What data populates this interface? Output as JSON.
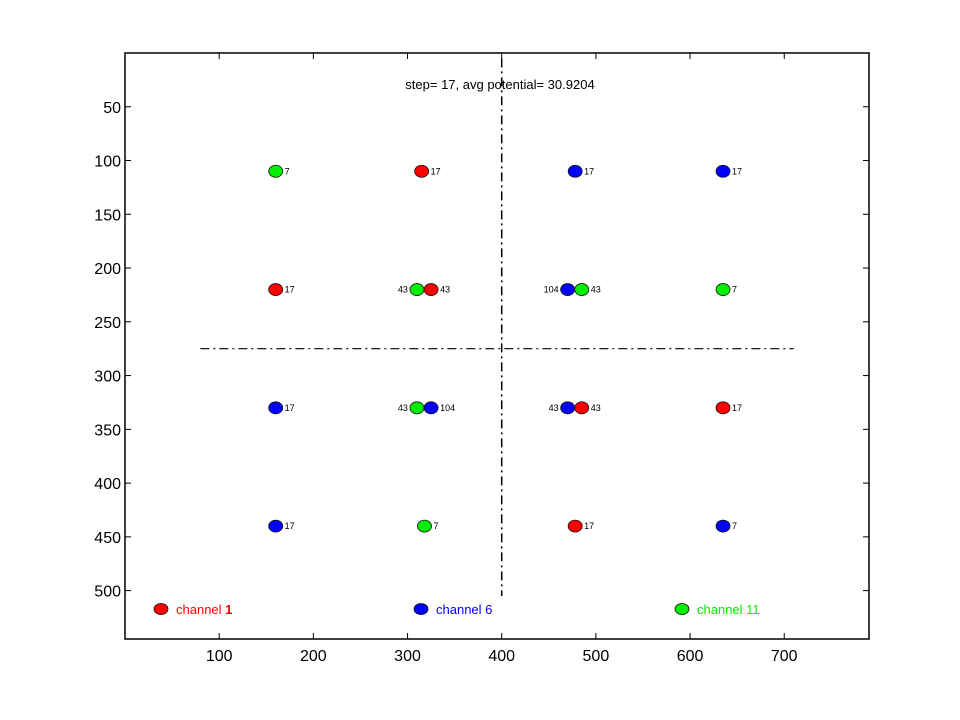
{
  "chart_data": {
    "type": "scatter",
    "title": "step= 17, avg potential= 30.9204",
    "xlabel": "",
    "ylabel": "",
    "xlim": [
      0,
      790
    ],
    "ylim": [
      545,
      0
    ],
    "y_reversed": true,
    "grid": false,
    "legend_placement": "bottom",
    "x_ticks": [
      100,
      200,
      300,
      400,
      500,
      600,
      700
    ],
    "y_ticks": [
      50,
      100,
      150,
      200,
      250,
      300,
      350,
      400,
      450,
      500
    ],
    "reference_lines": [
      {
        "orientation": "vertical",
        "x": 400,
        "y_range": [
          5,
          505
        ],
        "style": "dash-dot"
      },
      {
        "orientation": "horizontal",
        "y": 275,
        "x_range": [
          80,
          710
        ],
        "style": "dash-dot"
      }
    ],
    "series": [
      {
        "name": "channel 1",
        "color": "#ff0000",
        "points": [
          {
            "x": 315,
            "y": 110,
            "label": "17"
          },
          {
            "x": 160,
            "y": 220,
            "label": "17"
          },
          {
            "x": 325,
            "y": 220,
            "label": "43"
          },
          {
            "x": 485,
            "y": 330,
            "label": "43"
          },
          {
            "x": 635,
            "y": 330,
            "label": "17"
          },
          {
            "x": 478,
            "y": 440,
            "label": "17"
          }
        ]
      },
      {
        "name": "channel 6",
        "color": "#0000ff",
        "points": [
          {
            "x": 478,
            "y": 110,
            "label": "17"
          },
          {
            "x": 635,
            "y": 110,
            "label": "17"
          },
          {
            "x": 470,
            "y": 220,
            "label": "104"
          },
          {
            "x": 160,
            "y": 330,
            "label": "17"
          },
          {
            "x": 325,
            "y": 330,
            "label": "104"
          },
          {
            "x": 470,
            "y": 330,
            "label": "43"
          },
          {
            "x": 160,
            "y": 440,
            "label": "17"
          },
          {
            "x": 635,
            "y": 440,
            "label": "7"
          }
        ]
      },
      {
        "name": "channel 11",
        "color": "#00ee00",
        "points": [
          {
            "x": 160,
            "y": 110,
            "label": "7"
          },
          {
            "x": 310,
            "y": 220,
            "label": "43"
          },
          {
            "x": 485,
            "y": 220,
            "label": "43"
          },
          {
            "x": 635,
            "y": 220,
            "label": "7"
          },
          {
            "x": 310,
            "y": 330,
            "label": "43"
          },
          {
            "x": 318,
            "y": 440,
            "label": "7"
          }
        ]
      }
    ],
    "legend": [
      {
        "name": "channel 1",
        "prefix": "channel ",
        "suffix": "1",
        "color": "#ff0000"
      },
      {
        "name": "channel 6",
        "prefix": "channel 6",
        "suffix": "",
        "color": "#0000ff"
      },
      {
        "name": "channel 11",
        "prefix": "channel 11",
        "suffix": "",
        "color": "#00ee00"
      }
    ]
  }
}
